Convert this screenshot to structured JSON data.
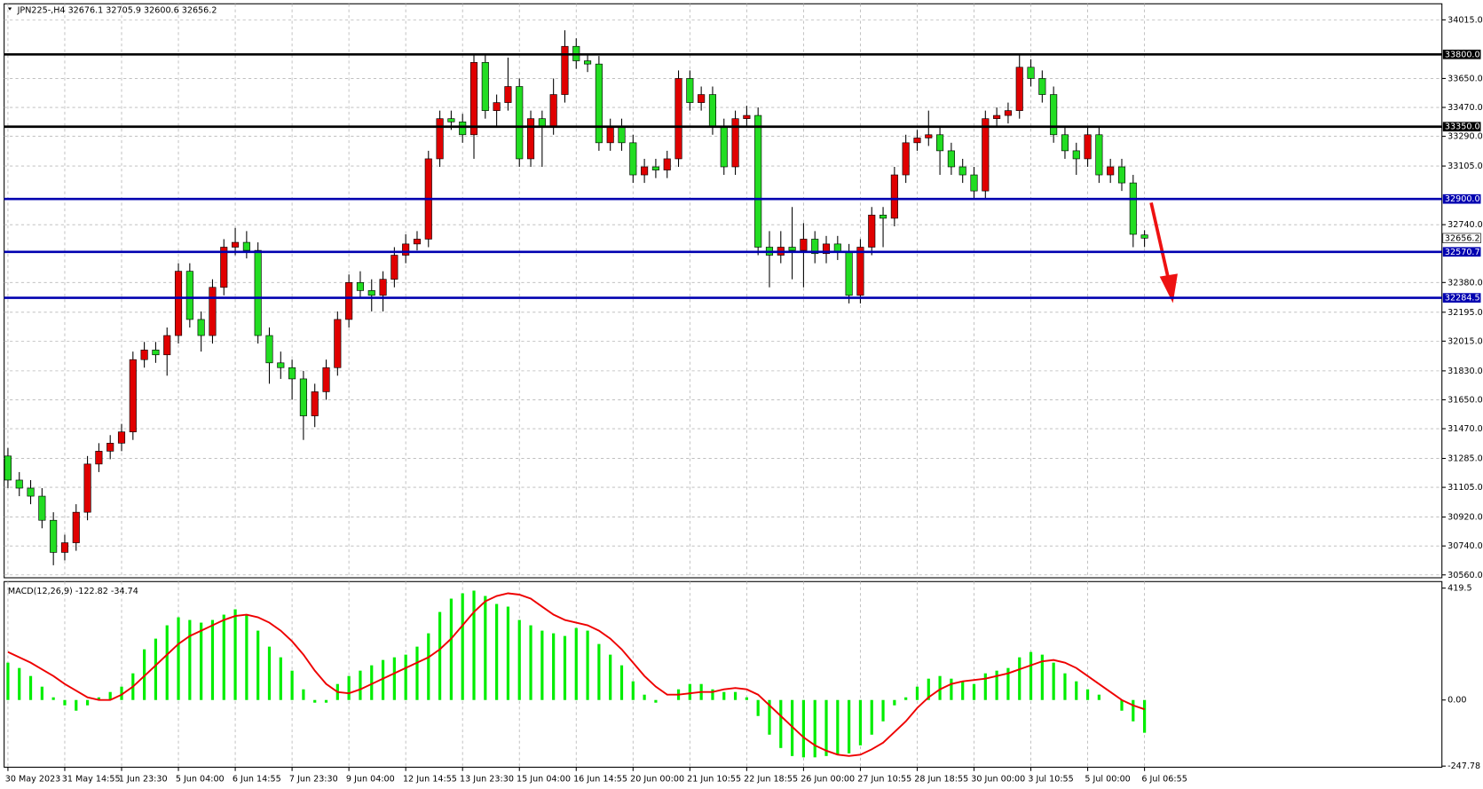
{
  "chart_data": [
    {
      "type": "candlestick",
      "title": "JPN225-,H4  32676.1 32705.9 32600.6 32656.2",
      "up_color": "#e00000",
      "down_color": "#22dd22",
      "wick_color": "#000000",
      "ylim": [
        30542,
        34115
      ],
      "yticks": [
        {
          "value": 34015,
          "label": "34015.0"
        },
        {
          "value": 33650,
          "label": "33650.0"
        },
        {
          "value": 33470,
          "label": "33470.0"
        },
        {
          "value": 33290,
          "label": "33290.0"
        },
        {
          "value": 33105,
          "label": "33105.0"
        },
        {
          "value": 32740,
          "label": "32740.0"
        },
        {
          "value": 32380,
          "label": "32380.0"
        },
        {
          "value": 32195,
          "label": "32195.0"
        },
        {
          "value": 32015,
          "label": "32015.0"
        },
        {
          "value": 31830,
          "label": "31830.0"
        },
        {
          "value": 31650,
          "label": "31650.0"
        },
        {
          "value": 31470,
          "label": "31470.0"
        },
        {
          "value": 31285,
          "label": "31285.0"
        },
        {
          "value": 31105,
          "label": "31105.0"
        },
        {
          "value": 30920,
          "label": "30920.0"
        },
        {
          "value": 30740,
          "label": "30740.0"
        },
        {
          "value": 30560,
          "label": "30560.0"
        }
      ],
      "grid": true,
      "levels": [
        {
          "value": 33800,
          "label": "33800.0",
          "color": "#000000"
        },
        {
          "value": 33350,
          "label": "33350.0",
          "color": "#000000"
        },
        {
          "value": 32900,
          "label": "32900.0",
          "color": "#0000b0"
        },
        {
          "value": 32570.7,
          "label": "32570.7",
          "color": "#0000b0"
        },
        {
          "value": 32284.5,
          "label": "32284.5",
          "color": "#0000b0"
        }
      ],
      "current_price": 32656.2,
      "open": [
        31300,
        31150,
        31100,
        31050,
        30900,
        30700,
        30760,
        30950,
        31250,
        31330,
        31380,
        31450,
        31900,
        31960,
        31930,
        32050,
        32450,
        32150,
        32050,
        32350,
        32600,
        32630,
        32580,
        32050,
        31880,
        31850,
        31780,
        31550,
        31700,
        31850,
        32150,
        32380,
        32330,
        32300,
        32400,
        32550,
        32620,
        32650,
        33150,
        33400,
        33380,
        33300,
        33750,
        33450,
        33500,
        33600,
        33150,
        33400,
        33350,
        33550,
        33850,
        33760,
        33740,
        33250,
        33350,
        33250,
        33050,
        33100,
        33080,
        33150,
        33650,
        33500,
        33550,
        33350,
        33100,
        33400,
        33420,
        32600,
        32550,
        32600,
        32580,
        32650,
        32560,
        32620,
        32570,
        32300,
        32600,
        32800,
        32780,
        33050,
        33250,
        33280,
        33300,
        33200,
        33100,
        33050,
        32950,
        33400,
        33420,
        33450,
        33720,
        33650,
        33550,
        33300,
        33200,
        33150,
        33300,
        33050,
        33100,
        33000,
        32676.1
      ],
      "high": [
        31350,
        31200,
        31150,
        31100,
        30950,
        30810,
        31000,
        31300,
        31380,
        31430,
        31500,
        31950,
        32010,
        32010,
        32100,
        32500,
        32500,
        32200,
        32400,
        32650,
        32720,
        32700,
        32630,
        32100,
        31950,
        31900,
        31830,
        31750,
        31900,
        32200,
        32430,
        32450,
        32400,
        32450,
        32600,
        32680,
        32700,
        33200,
        33450,
        33450,
        33430,
        33800,
        33800,
        33550,
        33780,
        33650,
        33450,
        33450,
        33650,
        33950,
        33900,
        33800,
        33790,
        33400,
        33400,
        33300,
        33150,
        33150,
        33200,
        33700,
        33700,
        33600,
        33600,
        33400,
        33450,
        33480,
        33470,
        32700,
        32700,
        32850,
        32750,
        32700,
        32670,
        32670,
        32620,
        32650,
        32850,
        32850,
        33100,
        33300,
        33330,
        33450,
        33350,
        33250,
        33150,
        33100,
        33450,
        33470,
        33500,
        33800,
        33770,
        33700,
        33600,
        33350,
        33250,
        33350,
        33350,
        33150,
        33150,
        33050,
        32705.9
      ],
      "low": [
        31100,
        31050,
        31000,
        30850,
        30620,
        30650,
        30710,
        30900,
        31200,
        31280,
        31330,
        31400,
        31850,
        31880,
        31800,
        32000,
        32100,
        31950,
        32000,
        32300,
        32550,
        32530,
        32000,
        31750,
        31780,
        31650,
        31400,
        31480,
        31650,
        31800,
        32100,
        32280,
        32200,
        32200,
        32350,
        32500,
        32580,
        32600,
        33100,
        33330,
        33250,
        33150,
        33400,
        33350,
        33450,
        33100,
        33100,
        33100,
        33300,
        33500,
        33710,
        33690,
        33200,
        33200,
        33200,
        33000,
        33000,
        33030,
        33030,
        33100,
        33450,
        33450,
        33300,
        33050,
        33050,
        33350,
        32550,
        32350,
        32500,
        32400,
        32350,
        32500,
        32500,
        32520,
        32250,
        32250,
        32550,
        32600,
        32730,
        33000,
        33200,
        33230,
        33050,
        33050,
        33000,
        32900,
        32900,
        33350,
        33370,
        33400,
        33600,
        33500,
        33250,
        33150,
        33050,
        33100,
        33000,
        33000,
        32950,
        32600,
        32600.6
      ],
      "close": [
        31150,
        31100,
        31050,
        30900,
        30700,
        30760,
        30950,
        31250,
        31330,
        31380,
        31450,
        31900,
        31960,
        31930,
        32050,
        32450,
        32150,
        32050,
        32350,
        32600,
        32630,
        32580,
        32050,
        31880,
        31850,
        31780,
        31550,
        31700,
        31850,
        32150,
        32380,
        32330,
        32300,
        32400,
        32550,
        32620,
        32650,
        33150,
        33400,
        33380,
        33300,
        33750,
        33450,
        33500,
        33600,
        33150,
        33400,
        33350,
        33550,
        33850,
        33760,
        33740,
        33250,
        33350,
        33250,
        33050,
        33100,
        33080,
        33150,
        33650,
        33500,
        33550,
        33350,
        33100,
        33400,
        33420,
        32600,
        32550,
        32600,
        32580,
        32650,
        32560,
        32620,
        32570,
        32300,
        32600,
        32800,
        32780,
        33050,
        33250,
        33280,
        33300,
        33200,
        33100,
        33050,
        32950,
        33400,
        33420,
        33450,
        33720,
        33650,
        33550,
        33300,
        33200,
        33150,
        33300,
        33050,
        33100,
        33000,
        32680,
        32656.2
      ]
    },
    {
      "type": "macd",
      "title": "MACD(12,26,9) -122.82 -34.74",
      "ylim": [
        -252,
        444
      ],
      "yticks": [
        419.5,
        {
          "value": 0,
          "label": "0.00"
        },
        -247.78
      ],
      "categories": [
        "30 May 2023",
        null,
        null,
        null,
        null,
        "31 May 14:55",
        null,
        null,
        null,
        null,
        "1 Jun 23:30",
        null,
        null,
        null,
        null,
        "5 Jun 04:00",
        null,
        null,
        null,
        null,
        "6 Jun 14:55",
        null,
        null,
        null,
        null,
        "7 Jun 23:30",
        null,
        null,
        null,
        null,
        "9 Jun 04:00",
        null,
        null,
        null,
        null,
        "12 Jun 14:55",
        null,
        null,
        null,
        null,
        "13 Jun 23:30",
        null,
        null,
        null,
        null,
        "15 Jun 04:00",
        null,
        null,
        null,
        null,
        "16 Jun 14:55",
        null,
        null,
        null,
        null,
        "20 Jun 00:00",
        null,
        null,
        null,
        null,
        "21 Jun 10:55",
        null,
        null,
        null,
        null,
        "22 Jun 18:55",
        null,
        null,
        null,
        null,
        "26 Jun 00:00",
        null,
        null,
        null,
        null,
        "27 Jun 10:55",
        null,
        null,
        null,
        null,
        "28 Jun 18:55",
        null,
        null,
        null,
        null,
        "30 Jun 00:00",
        null,
        null,
        null,
        null,
        "3 Jul 10:55",
        null,
        null,
        null,
        null,
        "5 Jul 00:00",
        null,
        null,
        null,
        null,
        "6 Jul 06:55"
      ],
      "series": [
        {
          "type": "bar",
          "color": "#00ee00",
          "values": [
            140,
            120,
            90,
            50,
            10,
            -20,
            -40,
            -20,
            10,
            30,
            50,
            100,
            190,
            230,
            280,
            310,
            300,
            290,
            300,
            320,
            340,
            320,
            260,
            200,
            160,
            110,
            40,
            -10,
            -10,
            60,
            90,
            110,
            130,
            150,
            160,
            170,
            200,
            250,
            330,
            380,
            400,
            410,
            390,
            360,
            350,
            300,
            280,
            260,
            250,
            240,
            270,
            260,
            210,
            170,
            130,
            70,
            20,
            -10,
            0,
            40,
            60,
            60,
            40,
            30,
            30,
            10,
            -60,
            -130,
            -180,
            -210,
            -215,
            -215,
            -210,
            -205,
            -200,
            -170,
            -130,
            -80,
            -20,
            10,
            50,
            80,
            90,
            80,
            70,
            60,
            100,
            110,
            120,
            160,
            180,
            170,
            140,
            100,
            70,
            40,
            20,
            0,
            -40,
            -80,
            -122.82
          ]
        },
        {
          "type": "line",
          "color": "#ee0000",
          "values": [
            180,
            160,
            140,
            115,
            90,
            60,
            35,
            10,
            0,
            0,
            20,
            50,
            90,
            130,
            170,
            210,
            240,
            260,
            280,
            300,
            315,
            320,
            310,
            290,
            260,
            220,
            170,
            110,
            60,
            30,
            25,
            40,
            60,
            80,
            100,
            120,
            140,
            160,
            190,
            230,
            280,
            330,
            370,
            390,
            400,
            395,
            380,
            350,
            320,
            300,
            290,
            280,
            260,
            230,
            190,
            140,
            90,
            50,
            20,
            20,
            25,
            30,
            30,
            40,
            45,
            40,
            20,
            -20,
            -60,
            -100,
            -140,
            -170,
            -190,
            -205,
            -210,
            -205,
            -185,
            -160,
            -120,
            -80,
            -30,
            10,
            40,
            60,
            70,
            75,
            80,
            90,
            100,
            115,
            130,
            145,
            150,
            140,
            120,
            90,
            60,
            30,
            0,
            -20,
            -34.74
          ]
        }
      ]
    }
  ]
}
